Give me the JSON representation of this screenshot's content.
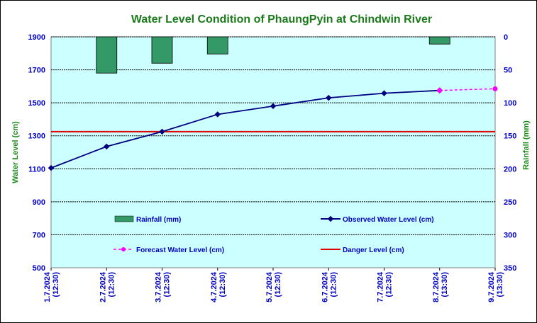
{
  "chart_data": {
    "type": "line",
    "title": "Water Level Condition of PhaungPyin at Chindwin River",
    "ylabel": "Water Level (cm)",
    "y2label": "Rainfall (mm)",
    "categories": [
      "1.7.2024",
      "2.7.2024",
      "3.7.2024",
      "4.7.2024",
      "5.7.2024",
      "6.7.2024",
      "7.7.2024",
      "8.7.2024",
      "9.7.2024"
    ],
    "category_times": [
      "(12:30)",
      "(12:30)",
      "(12:30)",
      "(12:30)",
      "(12:30)",
      "(12:30)",
      "(12:30)",
      "(13:30)",
      "(13:30)"
    ],
    "ylim": [
      500,
      1900
    ],
    "yticks": [
      500,
      700,
      900,
      1100,
      1300,
      1500,
      1700,
      1900
    ],
    "y2lim": [
      0,
      350
    ],
    "y2ticks": [
      0,
      50,
      100,
      150,
      200,
      250,
      300,
      350
    ],
    "y2_inverted": true,
    "grid": true,
    "series": [
      {
        "name": "Rainfall (mm)",
        "type": "bar",
        "axis": "right",
        "color": "#339966",
        "values": [
          null,
          55,
          40,
          26,
          null,
          null,
          null,
          11,
          null
        ]
      },
      {
        "name": "Observed Water Level (cm)",
        "type": "line",
        "axis": "left",
        "color": "#000080",
        "values": [
          1105,
          1235,
          1325,
          1430,
          1480,
          1530,
          1558,
          1575,
          null
        ]
      },
      {
        "name": "Forecast Water Level (cm)",
        "type": "line",
        "axis": "left",
        "color": "#ff00ff",
        "dashed": true,
        "values": [
          null,
          null,
          null,
          null,
          null,
          null,
          null,
          1575,
          1585
        ]
      },
      {
        "name": "Danger Level (cm)",
        "type": "line",
        "axis": "left",
        "color": "#e00000",
        "constant": 1325
      }
    ],
    "colors": {
      "plot_background": "#ccffff",
      "title": "#1a7a1a",
      "ticks": "#0000c0"
    }
  }
}
